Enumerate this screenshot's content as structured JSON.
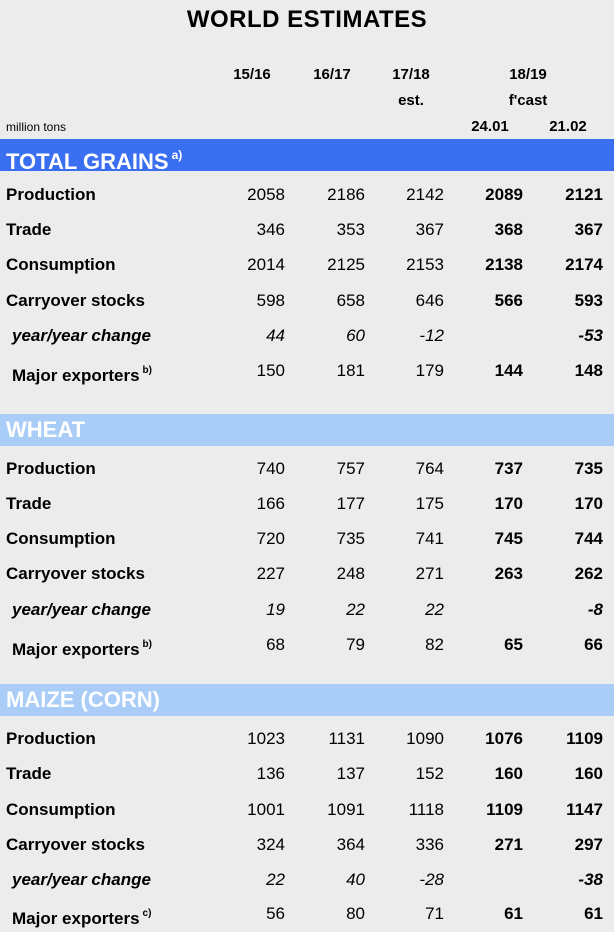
{
  "title": "WORLD ESTIMATES",
  "unit": "million tons",
  "columns": {
    "c1": "15/16",
    "c2": "16/17",
    "c3_line1": "17/18",
    "c3_line2": "est.",
    "c45_line1": "18/19",
    "c45_line2": "f'cast",
    "c4": "24.01",
    "c5": "21.02"
  },
  "sections": [
    {
      "name": "TOTAL GRAINS",
      "note": "a)",
      "rows": [
        {
          "label": "Production",
          "note": "",
          "values": [
            "2058",
            "2186",
            "2142",
            "2089",
            "2121"
          ]
        },
        {
          "label": "Trade",
          "note": "",
          "values": [
            "346",
            "353",
            "367",
            "368",
            "367"
          ]
        },
        {
          "label": "Consumption",
          "note": "",
          "values": [
            "2014",
            "2125",
            "2153",
            "2138",
            "2174"
          ]
        },
        {
          "label": "Carryover stocks",
          "note": "",
          "values": [
            "598",
            "658",
            "646",
            "566",
            "593"
          ]
        },
        {
          "label": "year/year change",
          "note": "",
          "values": [
            "44",
            "60",
            "-12",
            "",
            "-53"
          ]
        },
        {
          "label": "Major exporters",
          "note": "b)",
          "values": [
            "150",
            "181",
            "179",
            "144",
            "148"
          ]
        }
      ]
    },
    {
      "name": "WHEAT",
      "note": "",
      "rows": [
        {
          "label": "Production",
          "note": "",
          "values": [
            "740",
            "757",
            "764",
            "737",
            "735"
          ]
        },
        {
          "label": "Trade",
          "note": "",
          "values": [
            "166",
            "177",
            "175",
            "170",
            "170"
          ]
        },
        {
          "label": "Consumption",
          "note": "",
          "values": [
            "720",
            "735",
            "741",
            "745",
            "744"
          ]
        },
        {
          "label": "Carryover stocks",
          "note": "",
          "values": [
            "227",
            "248",
            "271",
            "263",
            "262"
          ]
        },
        {
          "label": "year/year change",
          "note": "",
          "values": [
            "19",
            "22",
            "22",
            "",
            "-8"
          ]
        },
        {
          "label": "Major exporters",
          "note": "b)",
          "values": [
            "68",
            "79",
            "82",
            "65",
            "66"
          ]
        }
      ]
    },
    {
      "name": "MAIZE (CORN)",
      "note": "",
      "rows": [
        {
          "label": "Production",
          "note": "",
          "values": [
            "1023",
            "1131",
            "1090",
            "1076",
            "1109"
          ]
        },
        {
          "label": "Trade",
          "note": "",
          "values": [
            "136",
            "137",
            "152",
            "160",
            "160"
          ]
        },
        {
          "label": "Consumption",
          "note": "",
          "values": [
            "1001",
            "1091",
            "1118",
            "1109",
            "1147"
          ]
        },
        {
          "label": "Carryover stocks",
          "note": "",
          "values": [
            "324",
            "364",
            "336",
            "271",
            "297"
          ]
        },
        {
          "label": "year/year change",
          "note": "",
          "values": [
            "22",
            "40",
            "-28",
            "",
            "-38"
          ]
        },
        {
          "label": "Major exporters",
          "note": "c)",
          "values": [
            "56",
            "80",
            "71",
            "61",
            "61"
          ]
        }
      ]
    }
  ]
}
